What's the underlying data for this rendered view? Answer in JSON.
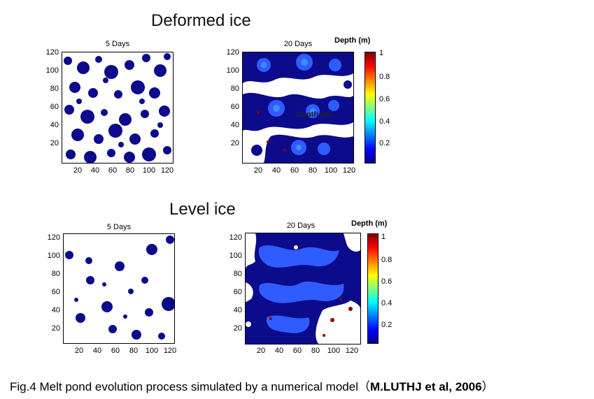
{
  "section_titles": {
    "deformed": "Deformed ice",
    "level": "Level ice"
  },
  "panels": {
    "deformed_5": {
      "title": "5 Days"
    },
    "deformed_20": {
      "title": "20 Days",
      "overlay_label": "Depth (m)"
    },
    "level_5": {
      "title": "5 Days"
    },
    "level_20": {
      "title": "20 Days"
    }
  },
  "axes": {
    "y_ticks": [
      "120",
      "100",
      "80",
      "60",
      "40",
      "20"
    ],
    "x_ticks": [
      "20",
      "40",
      "60",
      "80",
      "100",
      "120"
    ]
  },
  "colorbars": {
    "deformed": {
      "title": "Depth (m)",
      "ticks": [
        "1",
        "0.8",
        "0.6",
        "0.4",
        "0.2"
      ]
    },
    "level": {
      "title": "Depth (m)",
      "ticks": [
        "1",
        "0.8",
        "0.6",
        "0.4",
        "0.2"
      ]
    }
  },
  "colors": {
    "pond_dark": "#0b0b8c",
    "pond_blue": "#2f5cff",
    "pond_light": "#3f8cff",
    "pond_deep": "#8b0000"
  },
  "caption": {
    "text": "Fig.4 Melt pond evolution process simulated by a numerical model（",
    "citation": "M.LUTHJ et al, 2006",
    "close": "）"
  }
}
